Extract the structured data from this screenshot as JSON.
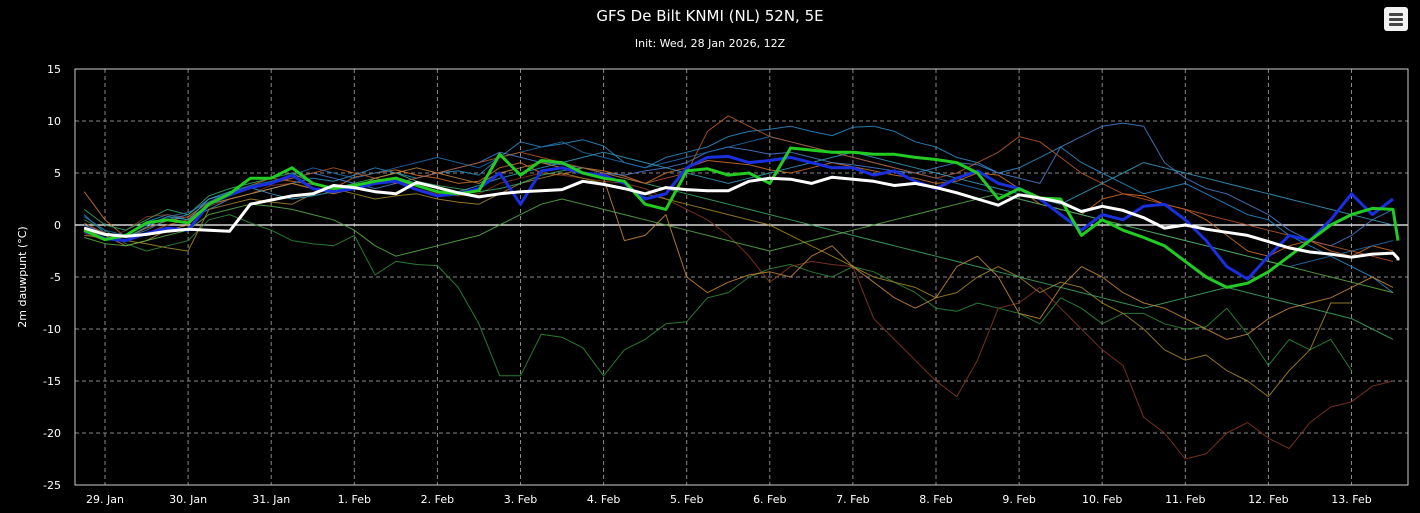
{
  "header": {
    "title": "GFS De Bilt KNMI (NL) 52N, 5E",
    "subtitle": "Init: Wed, 28 Jan 2026, 12Z"
  },
  "menu": {
    "icon": "hamburger-menu-icon"
  },
  "colors": {
    "background": "#000000",
    "mean": "#ffffff",
    "control": "#22cc22",
    "operational": "#1a2fe0"
  },
  "chart_data": {
    "type": "line",
    "title": "GFS De Bilt KNMI (NL) 52N, 5E",
    "subtitle": "Init: Wed, 28 Jan 2026, 12Z",
    "xlabel": "",
    "ylabel": "2m dauwpunt (°C)",
    "ylim": [
      -25,
      15
    ],
    "yticks": [
      15,
      10,
      5,
      0,
      -5,
      -10,
      -15,
      -20,
      -25
    ],
    "x_ticks": [
      "29. Jan",
      "30. Jan",
      "31. Jan",
      "1. Feb",
      "2. Feb",
      "3. Feb",
      "4. Feb",
      "5. Feb",
      "6. Feb",
      "7. Feb",
      "8. Feb",
      "9. Feb",
      "10. Feb",
      "11. Feb",
      "12. Feb",
      "13. Feb"
    ],
    "x_step_hours": 6,
    "x_start": "28 Jan 2026 18Z",
    "grid": true,
    "series": [
      {
        "role": "mean",
        "color": "#ffffff",
        "width": 3,
        "values": [
          -0.3,
          -0.9,
          -1.1,
          -0.9,
          -0.6,
          -0.4,
          -0.5,
          -0.6,
          2.0,
          2.4,
          2.8,
          3.0,
          3.8,
          3.6,
          3.2,
          3.0,
          4.1,
          3.6,
          3.1,
          2.7,
          3.0,
          3.2,
          3.3,
          3.4,
          4.2,
          3.9,
          3.5,
          3.0,
          3.6,
          3.4,
          3.3,
          3.3,
          4.2,
          4.5,
          4.4,
          4.0,
          4.6,
          4.4,
          4.2,
          3.8,
          4.0,
          3.6,
          3.1,
          2.5,
          1.9,
          2.9,
          2.6,
          2.2,
          1.3,
          1.8,
          1.4,
          0.7,
          -0.3,
          0.0,
          -0.4,
          -0.7,
          -1.0,
          -1.6,
          -2.2,
          -2.6,
          -2.8,
          -3.1,
          -2.8,
          -2.7,
          -3.2,
          -3.3,
          -3.4
        ]
      },
      {
        "role": "control",
        "color": "#22cc22",
        "width": 3,
        "values": [
          -0.5,
          -1.4,
          -1.0,
          0.2,
          0.5,
          0.2,
          2.0,
          3.0,
          4.5,
          4.5,
          5.5,
          4.0,
          3.5,
          3.8,
          4.2,
          4.5,
          3.8,
          3.2,
          3.0,
          3.3,
          6.8,
          4.8,
          6.2,
          6.0,
          5.0,
          4.5,
          4.2,
          2.0,
          1.5,
          5.2,
          5.4,
          4.8,
          5.0,
          4.0,
          7.4,
          7.2,
          7.0,
          7.0,
          6.8,
          6.8,
          6.5,
          6.3,
          6.0,
          5.0,
          2.5,
          3.5,
          2.6,
          2.5,
          -1.0,
          0.5,
          -0.5,
          -1.2,
          -2.0,
          -3.5,
          -5.0,
          -6.0,
          -5.6,
          -4.5,
          -3.0,
          -1.5,
          0.0,
          1.0,
          1.6,
          1.5,
          -1.5
        ]
      },
      {
        "role": "operational",
        "color": "#1a2fe0",
        "width": 3,
        "values": [
          -0.6,
          -1.3,
          -1.5,
          -0.8,
          -0.3,
          -0.5,
          2.0,
          2.9,
          3.6,
          4.0,
          4.8,
          3.5,
          3.2,
          3.5,
          4.0,
          4.2,
          3.4,
          2.8,
          3.0,
          3.5,
          5.0,
          2.0,
          5.2,
          5.5,
          5.0,
          4.8,
          4.0,
          2.5,
          3.0,
          5.5,
          6.5,
          6.6,
          6.0,
          6.2,
          6.5,
          6.0,
          5.5,
          5.5,
          4.8,
          5.2,
          4.2,
          3.5,
          4.5,
          5.2,
          4.0,
          3.5,
          2.5,
          1.0,
          -0.5,
          1.0,
          0.5,
          1.8,
          2.0,
          0.5,
          -1.5,
          -4.0,
          -5.2,
          -3.0,
          -1.0,
          -1.5,
          0.5,
          3.0,
          1.0,
          2.5
        ]
      },
      {
        "role": "member",
        "color": "#d4722a",
        "values": [
          3.2,
          0.5,
          -1.2,
          -0.3,
          0.4,
          0.8,
          2.2,
          3.0,
          3.8,
          4.5,
          4.2,
          3.9,
          3.5,
          4.6,
          5.0,
          5.3,
          4.8,
          4.5,
          4.0,
          4.2,
          5.5,
          6.0,
          5.0,
          4.8,
          5.5,
          5.2,
          4.7,
          4.0,
          5.0,
          5.5,
          6.2,
          6.0,
          5.8,
          5.3,
          5.0,
          5.5,
          6.0,
          5.6,
          5.2,
          4.8,
          4.5,
          4.0,
          4.2,
          5.0,
          4.8,
          3.5,
          2.0,
          1.5,
          1.0,
          2.5,
          3.0,
          2.8,
          2.0,
          1.5,
          0.5,
          -1.0,
          -2.5,
          -3.0,
          -2.0,
          -1.5,
          -2.5,
          -3.0,
          -2.0,
          -2.5
        ]
      },
      {
        "role": "member",
        "color": "#2a8fcc",
        "values": [
          1.0,
          -0.8,
          -1.0,
          0.3,
          1.0,
          0.5,
          1.5,
          2.5,
          3.0,
          3.5,
          4.0,
          4.5,
          4.2,
          4.8,
          5.5,
          5.0,
          4.5,
          5.0,
          5.2,
          4.8,
          6.5,
          8.0,
          7.5,
          7.8,
          8.2,
          7.6,
          6.0,
          5.5,
          6.5,
          7.0,
          7.5,
          8.5,
          9.0,
          9.2,
          9.5,
          9.0,
          8.6,
          9.4,
          9.5,
          9.0,
          8.0,
          7.5,
          6.5,
          6.0,
          5.0,
          5.5,
          6.5,
          7.5,
          6.0,
          5.0,
          4.0,
          3.0,
          3.5,
          4.0,
          3.0,
          2.0,
          1.0,
          0.5,
          -1.0,
          -2.0,
          -3.0,
          -4.0,
          -5.0,
          -6.5
        ]
      },
      {
        "role": "member",
        "color": "#2f8f3a",
        "values": [
          0.5,
          -0.5,
          -1.8,
          -2.5,
          -2.0,
          -1.5,
          0.5,
          1.0,
          0.2,
          -0.5,
          -1.5,
          -1.8,
          -2.0,
          -1.0,
          -4.8,
          -3.5,
          -3.8,
          -3.9,
          -6.0,
          -9.5,
          -14.5,
          -14.5,
          -10.5,
          -10.8,
          -11.8,
          -14.5,
          -12.0,
          -11.0,
          -9.5,
          -9.3,
          -7.0,
          -6.5,
          -5.0,
          -4.2,
          -3.8,
          -4.5,
          -5.0,
          -4.0,
          -4.5,
          -5.5,
          -6.5,
          -8.0,
          -8.3,
          -7.5,
          -8.0,
          -8.5,
          -9.5,
          -7.0,
          -8.0,
          -9.5,
          -8.5,
          -8.5,
          -9.5,
          -10.0,
          -9.8,
          -8.0,
          -10.5,
          -13.5,
          -11.0,
          -12.0,
          -11.0,
          -14.0
        ]
      },
      {
        "role": "member",
        "color": "#8a3a22",
        "values": [
          -0.8,
          -1.5,
          -0.5,
          0.8,
          1.0,
          0.7,
          1.8,
          2.5,
          3.0,
          3.8,
          4.0,
          3.5,
          3.0,
          3.8,
          4.0,
          4.5,
          3.5,
          3.0,
          2.8,
          3.0,
          4.0,
          4.5,
          5.0,
          4.8,
          4.5,
          4.2,
          4.0,
          3.5,
          2.5,
          1.5,
          0.5,
          -1.0,
          -3.0,
          -5.5,
          -4.0,
          -3.5,
          -3.8,
          -4.0,
          -9.0,
          -11.0,
          -13.0,
          -15.0,
          -16.5,
          -13.0,
          -8.0,
          -7.5,
          -6.0,
          -8.0,
          -10.0,
          -12.0,
          -13.5,
          -18.5,
          -20.0,
          -22.5,
          -22.0,
          -20.0,
          -19.0,
          -20.5,
          -21.5,
          -19.0,
          -17.5,
          -17.0,
          -15.5,
          -15.0
        ]
      },
      {
        "role": "member",
        "color": "#a88a2a",
        "values": [
          -1.0,
          -1.2,
          -1.5,
          -1.8,
          -2.2,
          -2.5,
          1.5,
          2.0,
          2.5,
          2.2,
          2.0,
          3.0,
          3.5,
          3.0,
          2.5,
          2.8,
          3.0,
          2.5,
          2.2,
          2.0,
          3.0,
          4.0,
          4.5,
          5.0,
          4.5,
          4.0,
          3.5,
          3.0,
          2.5,
          2.0,
          1.5,
          1.0,
          0.5,
          0.0,
          -1.0,
          -2.0,
          -3.0,
          -4.0,
          -5.0,
          -5.5,
          -6.0,
          -7.0,
          -6.5,
          -5.0,
          -4.0,
          -5.0,
          -6.5,
          -5.5,
          -6.0,
          -7.5,
          -8.5,
          -10.0,
          -12.0,
          -13.0,
          -12.5,
          -14.0,
          -15.0,
          -16.5,
          -14.0,
          -12.0,
          -7.5,
          -7.5
        ]
      },
      {
        "role": "member",
        "color": "#4a7fd0",
        "values": [
          0.0,
          -0.8,
          -1.2,
          -0.5,
          0.5,
          1.0,
          2.5,
          3.0,
          3.5,
          4.0,
          4.5,
          5.0,
          4.5,
          4.0,
          3.5,
          4.0,
          4.5,
          5.0,
          5.5,
          6.0,
          7.0,
          6.5,
          6.0,
          5.8,
          5.5,
          5.0,
          4.8,
          5.2,
          5.5,
          6.0,
          7.0,
          7.5,
          7.2,
          6.8,
          7.0,
          6.5,
          6.0,
          5.8,
          5.5,
          5.2,
          5.0,
          5.5,
          6.0,
          5.8,
          5.0,
          4.5,
          4.0,
          7.5,
          8.5,
          9.5,
          9.8,
          9.5,
          6.0,
          4.5,
          3.5,
          3.0,
          2.0,
          1.0,
          -0.5,
          -1.5,
          -2.0,
          -1.0,
          0.5,
          1.5
        ]
      },
      {
        "role": "member",
        "color": "#3cab6a",
        "values": [
          1.5,
          0.0,
          -0.5,
          0.5,
          1.5,
          1.0,
          2.8,
          3.5,
          4.0,
          4.5,
          5.0,
          4.0,
          3.5,
          4.0,
          4.5,
          5.0,
          4.2,
          3.8,
          3.5,
          3.2,
          3.5,
          4.0,
          4.8,
          5.2,
          5.5,
          5.0,
          4.5,
          4.0,
          3.5,
          3.0,
          2.5,
          2.0,
          1.5,
          1.0,
          0.5,
          0.0,
          -0.5,
          -1.0,
          -1.5,
          -2.0,
          -2.5,
          -3.0,
          -3.5,
          -4.0,
          -4.5,
          -5.0,
          -5.5,
          -6.0,
          -6.5,
          -7.0,
          -7.5,
          -8.0,
          -7.5,
          -7.0,
          -6.5,
          -6.0,
          -6.5,
          -7.0,
          -7.5,
          -8.0,
          -8.5,
          -9.0,
          -10.0,
          -11.0
        ]
      },
      {
        "role": "member",
        "color": "#c98a3a",
        "values": [
          -0.5,
          -1.0,
          -2.0,
          -1.5,
          -0.5,
          0.0,
          2.0,
          2.5,
          3.0,
          3.5,
          4.0,
          3.5,
          3.0,
          3.5,
          4.5,
          5.0,
          5.5,
          5.0,
          4.5,
          4.0,
          5.0,
          5.5,
          6.0,
          5.5,
          5.0,
          4.5,
          -1.5,
          -1.0,
          1.0,
          -5.0,
          -6.5,
          -5.5,
          -4.8,
          -4.5,
          -5.0,
          -3.0,
          -2.0,
          -4.0,
          -5.5,
          -7.0,
          -8.0,
          -7.0,
          -4.0,
          -3.0,
          -5.0,
          -8.5,
          -9.0,
          -6.0,
          -4.0,
          -5.0,
          -6.5,
          -7.5,
          -8.0,
          -9.0,
          -10.0,
          -11.0,
          -10.5,
          -9.0,
          -8.0,
          -7.5,
          -7.0,
          -6.0,
          -5.0,
          -6.0
        ]
      },
      {
        "role": "member",
        "color": "#1e6fb0",
        "values": [
          0.8,
          -0.5,
          -1.0,
          0.0,
          0.8,
          1.2,
          2.2,
          3.2,
          3.8,
          4.2,
          4.8,
          5.5,
          5.0,
          4.5,
          5.0,
          5.5,
          6.0,
          6.5,
          6.0,
          5.5,
          6.5,
          7.0,
          7.5,
          8.0,
          7.0,
          6.5,
          6.0,
          5.5,
          6.0,
          6.5,
          7.0,
          7.5,
          8.0,
          8.5,
          8.0,
          7.5,
          7.0,
          6.5,
          6.0,
          5.5,
          5.0,
          4.5,
          4.0,
          3.5,
          3.0,
          2.5,
          2.0,
          1.5,
          1.0,
          0.5,
          0.0,
          -0.5,
          -1.0,
          -1.5,
          -2.0,
          -2.5,
          -3.0,
          -3.5,
          -4.0,
          -3.5,
          -3.0,
          -2.5,
          -2.0,
          -1.5
        ]
      },
      {
        "role": "member",
        "color": "#5ab04a",
        "values": [
          -1.2,
          -1.8,
          -2.0,
          -1.5,
          -1.0,
          -0.5,
          1.0,
          1.5,
          2.0,
          1.8,
          1.5,
          1.0,
          0.5,
          -0.5,
          -2.0,
          -3.0,
          -2.5,
          -2.0,
          -1.5,
          -1.0,
          0.0,
          1.0,
          2.0,
          2.5,
          2.0,
          1.5,
          1.0,
          0.5,
          0.0,
          -0.5,
          -1.0,
          -1.5,
          -2.0,
          -2.5,
          -2.0,
          -1.5,
          -1.0,
          -0.5,
          0.0,
          0.5,
          1.0,
          1.5,
          2.0,
          2.5,
          3.0,
          2.5,
          2.0,
          1.5,
          1.0,
          0.5,
          0.0,
          -0.5,
          -1.0,
          -1.5,
          -2.0,
          -2.5,
          -3.0,
          -3.5,
          -4.0,
          -4.5,
          -5.0,
          -5.5,
          -6.0,
          -6.5
        ]
      },
      {
        "role": "member",
        "color": "#b85a2a",
        "values": [
          0.2,
          -0.8,
          -1.5,
          -0.8,
          0.0,
          0.5,
          2.0,
          2.8,
          3.5,
          4.0,
          4.5,
          5.0,
          5.5,
          5.0,
          4.5,
          4.0,
          4.5,
          5.0,
          5.5,
          6.0,
          6.5,
          7.0,
          6.5,
          6.0,
          5.5,
          5.0,
          4.5,
          4.0,
          4.5,
          5.0,
          9.0,
          10.5,
          9.5,
          8.5,
          8.0,
          7.5,
          7.0,
          6.5,
          6.0,
          5.5,
          5.0,
          4.5,
          5.0,
          6.0,
          7.0,
          8.5,
          8.0,
          6.5,
          5.0,
          4.0,
          3.0,
          2.5,
          2.0,
          1.5,
          1.0,
          0.5,
          0.0,
          -0.5,
          -1.0,
          -1.5,
          -2.0,
          -2.5,
          -3.0,
          -3.5
        ]
      },
      {
        "role": "member",
        "color": "#3a9ec0",
        "values": [
          -0.2,
          -1.0,
          -1.2,
          -0.2,
          0.8,
          0.5,
          2.5,
          3.2,
          3.6,
          3.0,
          2.5,
          2.8,
          3.2,
          3.8,
          4.2,
          4.6,
          4.0,
          3.5,
          3.2,
          3.8,
          4.5,
          5.0,
          5.5,
          6.0,
          6.5,
          7.0,
          6.5,
          6.0,
          5.5,
          5.0,
          4.5,
          4.0,
          4.5,
          5.0,
          5.5,
          6.0,
          6.5,
          7.0,
          6.5,
          6.0,
          5.5,
          5.0,
          4.5,
          4.0,
          3.5,
          3.0,
          2.5,
          2.0,
          3.0,
          4.0,
          5.0,
          6.0,
          5.5,
          5.0,
          4.5,
          4.0,
          3.5,
          3.0,
          2.5,
          2.0,
          1.5,
          1.0,
          0.5,
          0.0
        ]
      }
    ]
  }
}
